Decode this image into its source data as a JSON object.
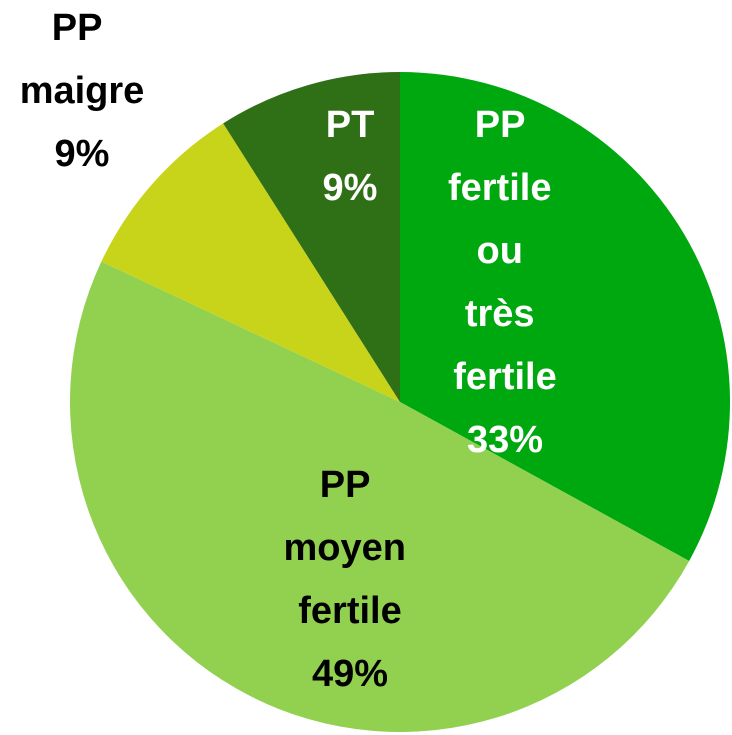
{
  "chart_data": {
    "type": "pie",
    "categories": [
      "PP fertile ou très fertile",
      "PP moyen fertile",
      "PP maigre",
      "PT"
    ],
    "values": [
      33,
      49,
      9,
      9
    ],
    "value_labels": [
      "33%",
      "49%",
      "9%",
      "9%"
    ],
    "colors": [
      "#00a80f",
      "#92d050",
      "#c8d41a",
      "#2f6f16"
    ],
    "label_colors": [
      "#ffffff",
      "#000000",
      "#000000",
      "#ffffff"
    ]
  }
}
